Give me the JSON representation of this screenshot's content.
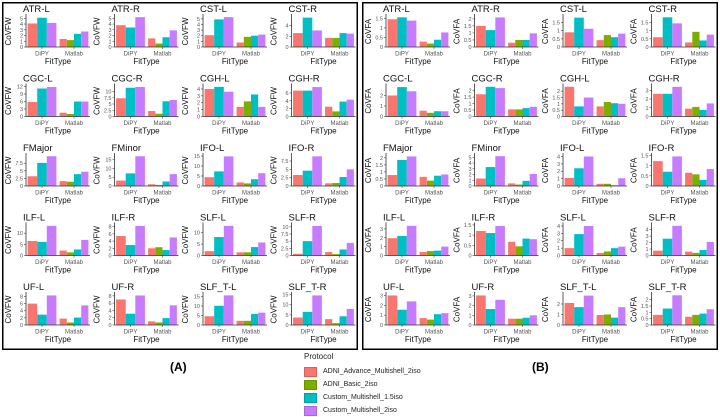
{
  "figures": [
    {
      "label": "(A)",
      "ylabel": "CoVFW",
      "xlabel": "FitType",
      "categories": [
        "DiPY",
        "Matlab"
      ],
      "panels": [
        {
          "title": "ATR-L",
          "yticks": [
            0,
            1,
            2,
            3,
            4,
            5
          ],
          "ymax": 5.4,
          "DiPY": [
            4.1,
            null,
            5.1,
            4.2
          ],
          "Matlab": [
            1.4,
            1.2,
            2.3,
            2.7
          ]
        },
        {
          "title": "ATR-R",
          "yticks": [
            0,
            1,
            2,
            3,
            4,
            5
          ],
          "ymax": 5.4,
          "DiPY": [
            3.8,
            null,
            3.4,
            5.2
          ],
          "Matlab": [
            1.5,
            0.6,
            1.7,
            2.9
          ]
        },
        {
          "title": "CST-L",
          "yticks": [
            0,
            1,
            2,
            3,
            4,
            5
          ],
          "ymax": 5.5,
          "DiPY": [
            2.1,
            null,
            4.9,
            5.3
          ],
          "Matlab": [
            0.8,
            1.8,
            2.0,
            2.2
          ]
        },
        {
          "title": "CST-R",
          "yticks": [
            0,
            2,
            4
          ],
          "ymax": 5.8,
          "DiPY": [
            2.6,
            null,
            5.5,
            3.1
          ],
          "Matlab": [
            1.7,
            1.7,
            2.6,
            2.5
          ]
        },
        {
          "title": "CGC-L",
          "yticks": [
            0,
            3,
            6,
            9,
            12
          ],
          "ymax": 12.4,
          "DiPY": [
            5.8,
            null,
            11.2,
            11.8
          ],
          "Matlab": [
            1.5,
            1.0,
            6.0,
            6.0
          ]
        },
        {
          "title": "CGC-R",
          "yticks": [
            0,
            2.5,
            5,
            7.5,
            10
          ],
          "ymax": 12.4,
          "DiPY": [
            7.3,
            null,
            11.5,
            11.8
          ],
          "Matlab": [
            2.2,
            1.1,
            6.1,
            6.6
          ]
        },
        {
          "title": "CGH-L",
          "yticks": [
            0,
            1,
            2,
            3,
            4
          ],
          "ymax": 4.5,
          "DiPY": [
            4.0,
            null,
            4.3,
            3.6
          ],
          "Matlab": [
            1.4,
            2.2,
            3.2,
            1.4
          ]
        },
        {
          "title": "CGH-R",
          "yticks": [
            0,
            2,
            4,
            6
          ],
          "ymax": 7.9,
          "DiPY": [
            6.6,
            null,
            6.6,
            7.5
          ],
          "Matlab": [
            2.5,
            1.3,
            3.8,
            4.3
          ]
        },
        {
          "title": "FMajor",
          "yticks": [
            0,
            2.5,
            5,
            7.5
          ],
          "ymax": 10.2,
          "DiPY": [
            3.2,
            null,
            7.6,
            9.8
          ],
          "Matlab": [
            1.6,
            1.4,
            3.9,
            4.7
          ]
        },
        {
          "title": "FMinor",
          "yticks": [
            0,
            5,
            10,
            15
          ],
          "ymax": 17.7,
          "DiPY": [
            3.1,
            null,
            7.2,
            17
          ],
          "Matlab": [
            1.0,
            0.6,
            2.6,
            6.8
          ]
        },
        {
          "title": "IFO-L",
          "yticks": [
            0,
            5,
            10,
            15
          ],
          "ymax": 15.5,
          "DiPY": [
            4.4,
            null,
            7.3,
            14.8
          ],
          "Matlab": [
            1.8,
            1.3,
            3.4,
            6.4
          ]
        },
        {
          "title": "IFO-R",
          "yticks": [
            0,
            2.5,
            5,
            7.5
          ],
          "ymax": 9.3,
          "DiPY": [
            3.3,
            null,
            4.6,
            8.9
          ],
          "Matlab": [
            0.8,
            0.9,
            2.7,
            5.0
          ]
        },
        {
          "title": "ILF-L",
          "yticks": [
            0,
            5,
            10
          ],
          "ymax": 13.9,
          "DiPY": [
            6.5,
            null,
            6.1,
            13.3
          ],
          "Matlab": [
            2.2,
            1.4,
            2.7,
            7.0
          ]
        },
        {
          "title": "ILF-R",
          "yticks": [
            0,
            2,
            4,
            6,
            8
          ],
          "ymax": 8.6,
          "DiPY": [
            5.4,
            null,
            2.9,
            8.2
          ],
          "Matlab": [
            2.0,
            2.3,
            1.5,
            5.0
          ]
        },
        {
          "title": "SLF-L",
          "yticks": [
            0,
            5,
            10
          ],
          "ymax": 13.6,
          "DiPY": [
            1.9,
            null,
            8.1,
            13
          ],
          "Matlab": [
            1.4,
            1.4,
            3.7,
            5.7
          ]
        },
        {
          "title": "SLF-R",
          "yticks": [
            0,
            2.5,
            5,
            7.5,
            10
          ],
          "ymax": 10.8,
          "DiPY": [
            0.6,
            null,
            5.0,
            10.3
          ],
          "Matlab": [
            1.2,
            0.5,
            2.1,
            4.4
          ]
        },
        {
          "title": "UF-L",
          "yticks": [
            0,
            2,
            4,
            6,
            8
          ],
          "ymax": 8.7,
          "DiPY": [
            6.0,
            null,
            2.9,
            8.3
          ],
          "Matlab": [
            1.8,
            0.7,
            2.1,
            5.5
          ]
        },
        {
          "title": "UF-R",
          "yticks": [
            0,
            2,
            4,
            6,
            8
          ],
          "ymax": 8.5,
          "DiPY": [
            7.0,
            null,
            3.1,
            8.1
          ],
          "Matlab": [
            1.0,
            0.7,
            1.9,
            5.4
          ]
        },
        {
          "title": "SLF_T-L",
          "yticks": [
            0,
            5,
            10,
            15
          ],
          "ymax": 16.3,
          "DiPY": [
            4.6,
            null,
            10.1,
            15.6
          ],
          "Matlab": [
            2.2,
            2.2,
            5.8,
            6.5
          ]
        },
        {
          "title": "SLF_T-R",
          "yticks": [
            0,
            5,
            10,
            15
          ],
          "ymax": 15.3,
          "DiPY": [
            3.7,
            null,
            6.5,
            14.6
          ],
          "Matlab": [
            2.9,
            0.9,
            4.3,
            7.9
          ]
        }
      ]
    },
    {
      "label": "(B)",
      "ylabel": "CoVFA",
      "xlabel": "FitType",
      "categories": [
        "DiPY",
        "Matlab"
      ],
      "panels": [
        {
          "title": "ATR-L",
          "yticks": [
            0,
            0.5,
            1,
            1.5
          ],
          "ymax": 1.62,
          "DiPY": [
            1.45,
            null,
            1.55,
            1.38
          ],
          "Matlab": [
            0.28,
            0.18,
            0.38,
            0.76
          ]
        },
        {
          "title": "ATR-R",
          "yticks": [
            0,
            0.5,
            1,
            1.5,
            2
          ],
          "ymax": 2.2,
          "DiPY": [
            1.5,
            null,
            1.2,
            2.1
          ],
          "Matlab": [
            0.3,
            0.5,
            0.5,
            0.97
          ]
        },
        {
          "title": "CST-L",
          "yticks": [
            0,
            0.5,
            1,
            1.5
          ],
          "ymax": 1.9,
          "DiPY": [
            0.9,
            null,
            1.8,
            1.12
          ],
          "Matlab": [
            0.42,
            0.73,
            0.6,
            0.82
          ]
        },
        {
          "title": "CST-R",
          "yticks": [
            0,
            0.5,
            1,
            1.5
          ],
          "ymax": 1.9,
          "DiPY": [
            0.6,
            null,
            1.82,
            1.45
          ],
          "Matlab": [
            0.28,
            0.93,
            0.4,
            0.76
          ]
        },
        {
          "title": "CGC-L",
          "yticks": [
            0,
            1,
            2
          ],
          "ymax": 2.95,
          "DiPY": [
            2.0,
            null,
            2.8,
            2.4
          ],
          "Matlab": [
            0.55,
            0.35,
            0.5,
            0.5
          ]
        },
        {
          "title": "CGC-R",
          "yticks": [
            0,
            0.5,
            1,
            1.5,
            2
          ],
          "ymax": 2.4,
          "DiPY": [
            1.72,
            null,
            2.3,
            2.2
          ],
          "Matlab": [
            0.55,
            0.55,
            0.65,
            0.75
          ]
        },
        {
          "title": "CGH-L",
          "yticks": [
            0,
            0.5,
            1,
            1.5,
            2
          ],
          "ymax": 2.45,
          "DiPY": [
            2.35,
            null,
            0.8,
            1.5
          ],
          "Matlab": [
            0.8,
            1.15,
            1.05,
            1.0
          ]
        },
        {
          "title": "CGH-R",
          "yticks": [
            0,
            1,
            2,
            3
          ],
          "ymax": 3.55,
          "DiPY": [
            2.6,
            null,
            2.6,
            3.4
          ],
          "Matlab": [
            0.9,
            1.1,
            0.75,
            1.5
          ]
        },
        {
          "title": "FMajor",
          "yticks": [
            0,
            0.5,
            1,
            1.5,
            2
          ],
          "ymax": 2.2,
          "DiPY": [
            0.78,
            null,
            1.85,
            2.1
          ],
          "Matlab": [
            0.65,
            0.38,
            0.73,
            0.82
          ]
        },
        {
          "title": "FMinor",
          "yticks": [
            0,
            1,
            2,
            3,
            4,
            5
          ],
          "ymax": 5.4,
          "DiPY": [
            1.3,
            null,
            3.3,
            5.2
          ],
          "Matlab": [
            0.45,
            0.25,
            0.9,
            2.1
          ]
        },
        {
          "title": "IFO-L",
          "yticks": [
            0,
            1,
            2,
            3,
            4
          ],
          "ymax": 4.2,
          "DiPY": [
            1.1,
            null,
            2.4,
            4.0
          ],
          "Matlab": [
            0.3,
            0.3,
            0.1,
            1.05
          ]
        },
        {
          "title": "IFO-R",
          "yticks": [
            0,
            0.5,
            1,
            1.5
          ],
          "ymax": 1.52,
          "DiPY": [
            1.22,
            null,
            0.7,
            1.45
          ],
          "Matlab": [
            0.65,
            0.57,
            0.3,
            0.83
          ]
        },
        {
          "title": "ILF-L",
          "yticks": [
            0,
            1,
            2,
            3
          ],
          "ymax": 3.5,
          "DiPY": [
            1.95,
            null,
            2.2,
            3.35
          ],
          "Matlab": [
            0.4,
            0.5,
            0.55,
            1.0
          ]
        },
        {
          "title": "ILF-R",
          "yticks": [
            0,
            0.5,
            1,
            1.5
          ],
          "ymax": 1.52,
          "DiPY": [
            1.2,
            null,
            1.1,
            1.45
          ],
          "Matlab": [
            0.67,
            0.45,
            0.83,
            0.8
          ]
        },
        {
          "title": "SLF-L",
          "yticks": [
            0,
            1,
            2,
            3,
            4
          ],
          "ymax": 4.2,
          "DiPY": [
            1.0,
            null,
            2.9,
            4.0
          ],
          "Matlab": [
            0.35,
            0.55,
            1.0,
            1.2
          ]
        },
        {
          "title": "SLF-R",
          "yticks": [
            0,
            1,
            2,
            3,
            4
          ],
          "ymax": 4.8,
          "DiPY": [
            0.75,
            null,
            2.6,
            4.6
          ],
          "Matlab": [
            0.6,
            0.4,
            0.85,
            2.1
          ]
        },
        {
          "title": "UF-L",
          "yticks": [
            0,
            1,
            2,
            3
          ],
          "ymax": 3.15,
          "DiPY": [
            3.0,
            null,
            1.55,
            2.4
          ],
          "Matlab": [
            0.7,
            0.55,
            1.1,
            1.2
          ]
        },
        {
          "title": "UF-R",
          "yticks": [
            0,
            1,
            2,
            3
          ],
          "ymax": 3.2,
          "DiPY": [
            3.05,
            null,
            1.65,
            2.6
          ],
          "Matlab": [
            0.65,
            0.65,
            0.75,
            1.0
          ]
        },
        {
          "title": "SLF_T-L",
          "yticks": [
            0,
            1,
            2
          ],
          "ymax": 2.95,
          "DiPY": [
            2.1,
            null,
            1.7,
            2.8
          ],
          "Matlab": [
            0.95,
            1.0,
            0.7,
            1.7
          ]
        },
        {
          "title": "SLF_T-R",
          "yticks": [
            0,
            0.5,
            1,
            1.5,
            2
          ],
          "ymax": 2.45,
          "DiPY": [
            0.8,
            null,
            1.3,
            2.35
          ],
          "Matlab": [
            0.65,
            0.8,
            0.9,
            1.25
          ]
        }
      ]
    }
  ],
  "legend": {
    "title": "Protocol",
    "items": [
      {
        "label": "ADNI_Advance_Multishell_2iso",
        "color": "#F8766D"
      },
      {
        "label": "ADNI_Basic_2iso",
        "color": "#7CAE00"
      },
      {
        "label": "Custom_Multishell_1.5iso",
        "color": "#00BFC4"
      },
      {
        "label": "Custom_Multishell_2iso",
        "color": "#C77CFF"
      }
    ]
  }
}
